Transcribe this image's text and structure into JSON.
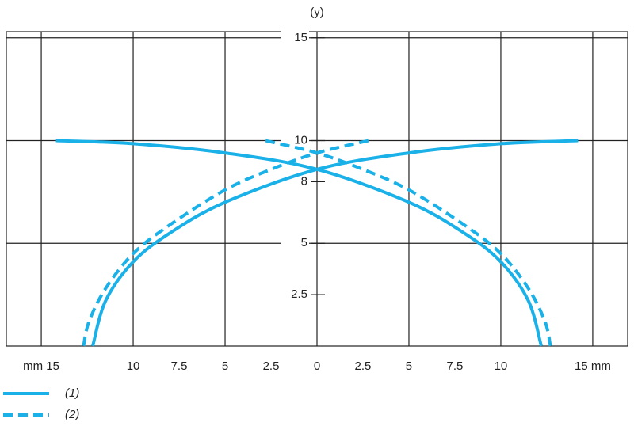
{
  "chart_data": {
    "type": "line",
    "y_axis_label": "(y)",
    "xlim": [
      -16.9,
      16.9
    ],
    "ylim": [
      0,
      15.3
    ],
    "xticks": [
      {
        "value": -15,
        "label": "mm 15"
      },
      {
        "value": -10,
        "label": "10"
      },
      {
        "value": -7.5,
        "label": "7.5"
      },
      {
        "value": -5,
        "label": "5"
      },
      {
        "value": -2.5,
        "label": "2.5"
      },
      0,
      2.5,
      5,
      7.5,
      10,
      {
        "value": 15,
        "label": "15 mm"
      }
    ],
    "yticks": [
      2.5,
      5,
      8,
      10,
      15
    ],
    "xgrid": [
      -15,
      -10,
      -5,
      0,
      5,
      10,
      15
    ],
    "ygrid": [
      5,
      10,
      15
    ],
    "series": [
      {
        "name": "(1)",
        "color": "#1ab0e8",
        "dash": false,
        "x": [
          -14.2,
          -10,
          -5,
          0,
          5,
          8,
          10,
          11.5,
          12.2,
          null,
          14.2,
          10,
          5,
          0,
          -5,
          -8,
          -10,
          -11.5,
          -12.2
        ],
        "values": [
          10,
          9.85,
          9.4,
          8.6,
          7.0,
          5.5,
          4.1,
          2.2,
          0,
          null,
          10,
          9.85,
          9.4,
          8.6,
          7.0,
          5.5,
          4.1,
          2.2,
          0
        ]
      },
      {
        "name": "(2)",
        "color": "#1ab0e8",
        "dash": true,
        "x": [
          -2.8,
          0,
          2.5,
          5,
          8,
          10,
          11.5,
          12.4,
          12.7,
          null,
          2.8,
          0,
          -2.5,
          -5,
          -8,
          -10,
          -11.5,
          -12.4,
          -12.7
        ],
        "values": [
          10,
          9.4,
          8.6,
          7.6,
          5.9,
          4.5,
          2.8,
          1.2,
          0,
          null,
          10,
          9.4,
          8.6,
          7.6,
          5.9,
          4.5,
          2.8,
          1.2,
          0
        ]
      }
    ]
  }
}
